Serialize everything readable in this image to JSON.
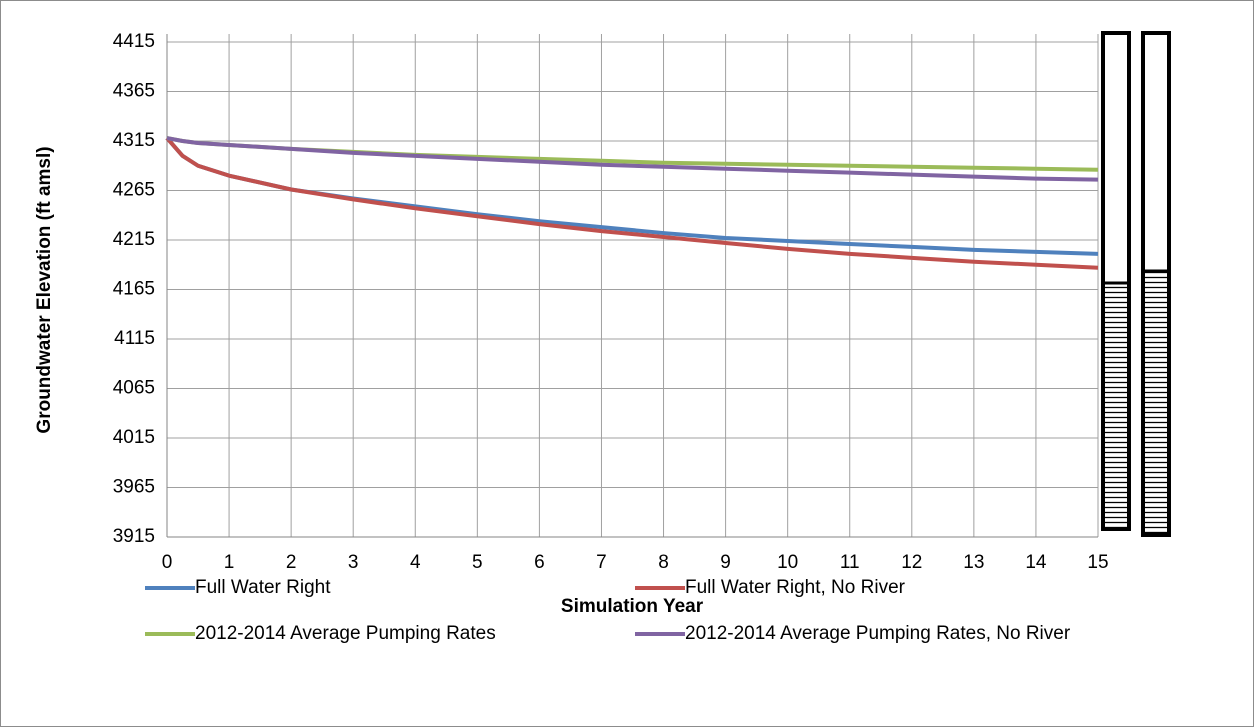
{
  "chart_data": {
    "type": "line",
    "x_label": "Simulation Year",
    "y_label": "Groundwater Elevation (ft amsl)",
    "x": [
      0,
      0.25,
      0.5,
      1,
      2,
      3,
      4,
      5,
      6,
      7,
      8,
      9,
      10,
      11,
      12,
      13,
      14,
      15
    ],
    "series": [
      {
        "name": "Full Water Right",
        "color": "#4f81bd",
        "values": [
          4318,
          4300,
          4290,
          4280,
          4266,
          4257,
          4249,
          4241,
          4234,
          4228,
          4222,
          4217,
          4214,
          4211,
          4208,
          4205,
          4203,
          4201
        ]
      },
      {
        "name": "Full Water Right, No River",
        "color": "#c0504d",
        "values": [
          4318,
          4300,
          4290,
          4280,
          4266,
          4256,
          4247,
          4239,
          4231,
          4224,
          4218,
          4212,
          4206,
          4201,
          4197,
          4193,
          4190,
          4187
        ]
      },
      {
        "name": "2012-2014 Average Pumping Rates",
        "color": "#9bbb59",
        "values": [
          4318,
          4315,
          4313,
          4311,
          4307,
          4304,
          4301,
          4299,
          4297,
          4295,
          4293,
          4292,
          4291,
          4290,
          4289,
          4288,
          4287,
          4286
        ]
      },
      {
        "name": "2012-2014 Average Pumping Rates, No River",
        "color": "#8064a2",
        "values": [
          4318,
          4315,
          4313,
          4311,
          4307,
          4303,
          4300,
          4297,
          4294,
          4291,
          4289,
          4287,
          4285,
          4283,
          4281,
          4279,
          4277,
          4276
        ]
      }
    ],
    "xlim": [
      0,
      15
    ],
    "xticks": [
      0,
      1,
      2,
      3,
      4,
      5,
      6,
      7,
      8,
      9,
      10,
      11,
      12,
      13,
      14,
      15
    ],
    "ylim": [
      3915,
      4415
    ],
    "yticks": [
      3915,
      3965,
      4015,
      4065,
      4115,
      4165,
      4215,
      4265,
      4315,
      4365,
      4415
    ],
    "grid": true
  }
}
